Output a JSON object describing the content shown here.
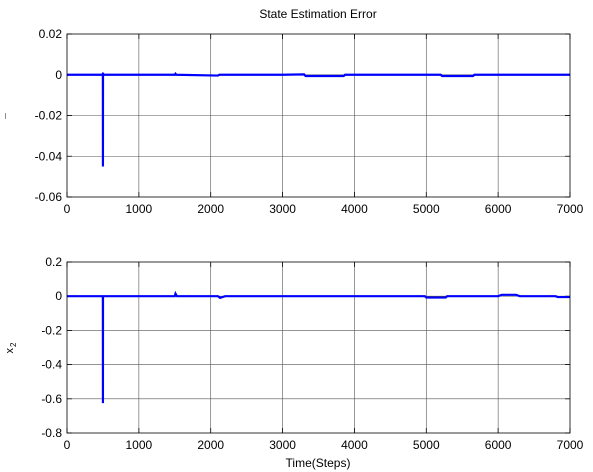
{
  "chart_data": [
    {
      "type": "line",
      "title": "State Estimation Error",
      "xlabel": "",
      "ylabel": "¯",
      "xlim": [
        0,
        7000
      ],
      "ylim": [
        -0.06,
        0.02
      ],
      "grid": true,
      "xticks": [
        "0",
        "1000",
        "2000",
        "3000",
        "4000",
        "5000",
        "6000",
        "7000"
      ],
      "yticks": [
        "-0.06",
        "-0.04",
        "-0.02",
        "0",
        "0.02"
      ],
      "xtick_values": [
        0,
        1000,
        2000,
        3000,
        4000,
        5000,
        6000,
        7000
      ],
      "ytick_values": [
        -0.06,
        -0.04,
        -0.02,
        0,
        0.02
      ],
      "series": [
        {
          "color": "#0000ff",
          "x": [
            0,
            499,
            500,
            501,
            502,
            505,
            510,
            1500,
            1510,
            1520,
            2100,
            2120,
            3000,
            3300,
            3320,
            3850,
            3870,
            5200,
            5220,
            5650,
            5670,
            7000
          ],
          "y": [
            0,
            0,
            -0.045,
            0.001,
            -0.0005,
            0.0002,
            0,
            0,
            0.0005,
            0,
            -0.0004,
            0,
            0,
            0.0002,
            -0.0006,
            -0.0006,
            0,
            0,
            -0.0006,
            -0.0006,
            0,
            0
          ]
        }
      ]
    },
    {
      "type": "line",
      "title": "",
      "xlabel": "Time(Steps)",
      "ylabel": "x",
      "ylabel_sub": "2",
      "xlim": [
        0,
        7000
      ],
      "ylim": [
        -0.8,
        0.2
      ],
      "grid": true,
      "xticks": [
        "0",
        "1000",
        "2000",
        "3000",
        "4000",
        "5000",
        "6000",
        "7000"
      ],
      "yticks": [
        "-0.8",
        "-0.6",
        "-0.4",
        "-0.2",
        "0",
        "0.2"
      ],
      "xtick_values": [
        0,
        1000,
        2000,
        3000,
        4000,
        5000,
        6000,
        7000
      ],
      "ytick_values": [
        -0.8,
        -0.6,
        -0.4,
        -0.2,
        0,
        0.2
      ],
      "series": [
        {
          "color": "#0000ff",
          "x": [
            0,
            499,
            500,
            501,
            502,
            505,
            1500,
            1510,
            1530,
            2100,
            2130,
            2200,
            4980,
            5000,
            5270,
            5290,
            6000,
            6050,
            6250,
            6300,
            6800,
            6830,
            7000
          ],
          "y": [
            0,
            0,
            -0.625,
            0.005,
            -0.005,
            0,
            0,
            0.015,
            0,
            0,
            -0.01,
            0,
            0,
            -0.008,
            -0.008,
            0,
            0,
            0.008,
            0.008,
            0,
            0,
            -0.005,
            -0.005
          ]
        }
      ]
    }
  ]
}
